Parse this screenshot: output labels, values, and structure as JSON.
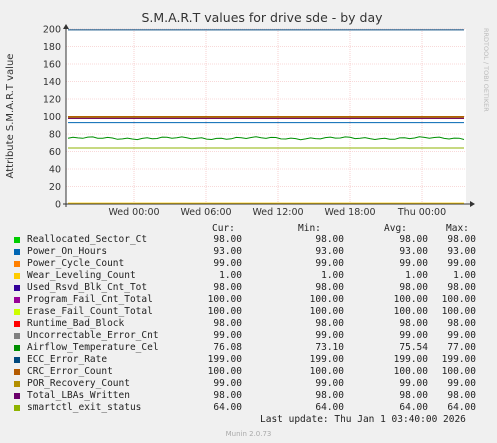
{
  "chart_data": {
    "type": "line",
    "title": "S.M.A.R.T values for drive sde - by day",
    "ylabel": "Attribute S.M.A.R.T value",
    "side_text": "RRDTOOL / TOBI OETIKER",
    "ylim": [
      0,
      200
    ],
    "yticks": [
      "0",
      "20",
      "40",
      "60",
      "80",
      "100",
      "120",
      "140",
      "160",
      "180",
      "200"
    ],
    "xticks": [
      "Wed 00:00",
      "Wed 06:00",
      "Wed 12:00",
      "Wed 18:00",
      "Thu 00:00"
    ],
    "grid": true,
    "series": [
      {
        "name": "Reallocated_Sector_Ct",
        "color": "#00cc00",
        "cur": "98.00",
        "min": "98.00",
        "avg": "98.00",
        "max": "98.00",
        "value": 98
      },
      {
        "name": "Power_On_Hours",
        "color": "#0066b3",
        "cur": "93.00",
        "min": "93.00",
        "avg": "93.00",
        "max": "93.00",
        "value": 93
      },
      {
        "name": "Power_Cycle_Count",
        "color": "#ff8000",
        "cur": "99.00",
        "min": "99.00",
        "avg": "99.00",
        "max": "99.00",
        "value": 99
      },
      {
        "name": "Wear_Leveling_Count",
        "color": "#ffcc00",
        "cur": "1.00",
        "min": "1.00",
        "avg": "1.00",
        "max": "1.00",
        "value": 1
      },
      {
        "name": "Used_Rsvd_Blk_Cnt_Tot",
        "color": "#330099",
        "cur": "98.00",
        "min": "98.00",
        "avg": "98.00",
        "max": "98.00",
        "value": 98
      },
      {
        "name": "Program_Fail_Cnt_Total",
        "color": "#990099",
        "cur": "100.00",
        "min": "100.00",
        "avg": "100.00",
        "max": "100.00",
        "value": 100
      },
      {
        "name": "Erase_Fail_Count_Total",
        "color": "#ccff00",
        "cur": "100.00",
        "min": "100.00",
        "avg": "100.00",
        "max": "100.00",
        "value": 100
      },
      {
        "name": "Runtime_Bad_Block",
        "color": "#ff0000",
        "cur": "98.00",
        "min": "98.00",
        "avg": "98.00",
        "max": "98.00",
        "value": 98
      },
      {
        "name": "Uncorrectable_Error_Cnt",
        "color": "#808080",
        "cur": "99.00",
        "min": "99.00",
        "avg": "99.00",
        "max": "99.00",
        "value": 99
      },
      {
        "name": "Airflow_Temperature_Cel",
        "color": "#008f00",
        "cur": "76.08",
        "min": "73.10",
        "avg": "75.54",
        "max": "77.00",
        "value": 75.5
      },
      {
        "name": "ECC_Error_Rate",
        "color": "#00487d",
        "cur": "199.00",
        "min": "199.00",
        "avg": "199.00",
        "max": "199.00",
        "value": 199
      },
      {
        "name": "CRC_Error_Count",
        "color": "#b35a00",
        "cur": "100.00",
        "min": "100.00",
        "avg": "100.00",
        "max": "100.00",
        "value": 100
      },
      {
        "name": "POR_Recovery_Count",
        "color": "#b38f00",
        "cur": "99.00",
        "min": "99.00",
        "avg": "99.00",
        "max": "99.00",
        "value": 99
      },
      {
        "name": "Total_LBAs_Written",
        "color": "#6b006b",
        "cur": "98.00",
        "min": "98.00",
        "avg": "98.00",
        "max": "98.00",
        "value": 98
      },
      {
        "name": "smartctl_exit_status",
        "color": "#8fb300",
        "cur": "64.00",
        "min": "64.00",
        "avg": "64.00",
        "max": "64.00",
        "value": 64
      }
    ]
  },
  "legend_headers": {
    "cur": "Cur:",
    "min": "Min:",
    "avg": "Avg:",
    "max": "Max:"
  },
  "last_update": "Last update: Thu Jan  1 03:40:00 2026",
  "footer": "Munin 2.0.73"
}
